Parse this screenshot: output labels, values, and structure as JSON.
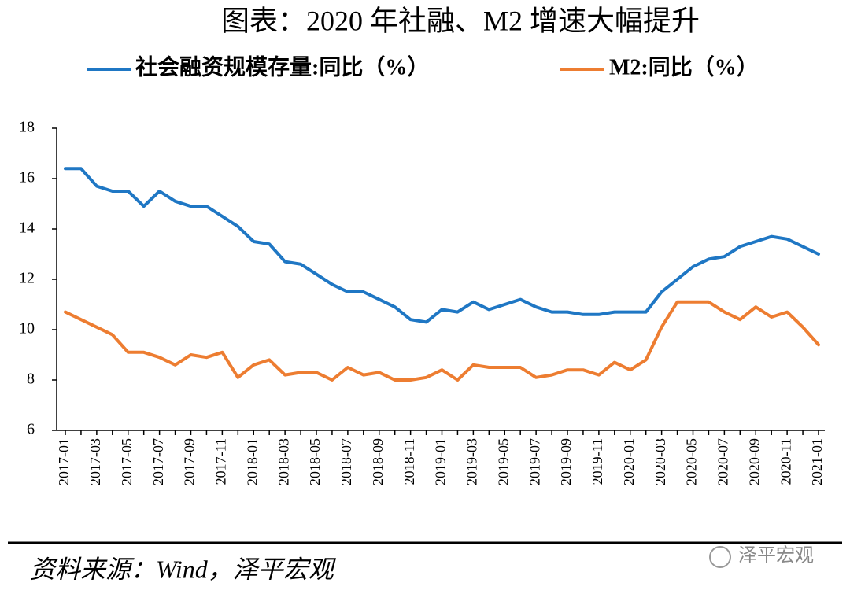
{
  "chart_data": {
    "type": "line",
    "title": "图表：2020 年社融、M2 增速大幅提升",
    "source": "资料来源：Wind，泽平宏观",
    "watermark": "泽平宏观",
    "categories": [
      "2017-01",
      null,
      "2017-03",
      null,
      "2017-05",
      null,
      "2017-07",
      null,
      "2017-09",
      null,
      "2017-11",
      null,
      "2018-01",
      null,
      "2018-03",
      null,
      "2018-05",
      null,
      "2018-07",
      null,
      "2018-09",
      null,
      "2018-11",
      null,
      "2019-01",
      null,
      "2019-03",
      null,
      "2019-05",
      null,
      "2019-07",
      null,
      "2019-09",
      null,
      "2019-11",
      null,
      "2020-01",
      null,
      "2020-03",
      null,
      "2020-05",
      null,
      "2020-07",
      null,
      "2020-09",
      null,
      "2020-11",
      null,
      "2021-01"
    ],
    "series": [
      {
        "name": "社会融资规模存量:同比（%）",
        "color": "#1f77c4",
        "values": [
          16.4,
          16.4,
          15.7,
          15.5,
          15.5,
          14.9,
          15.5,
          15.1,
          14.9,
          14.9,
          14.5,
          14.1,
          13.5,
          13.4,
          12.7,
          12.6,
          12.2,
          11.8,
          11.5,
          11.5,
          11.2,
          10.9,
          10.4,
          10.3,
          10.8,
          10.7,
          11.1,
          10.8,
          11.0,
          11.2,
          10.9,
          10.7,
          10.7,
          10.6,
          10.6,
          10.7,
          10.7,
          10.7,
          11.5,
          12.0,
          12.5,
          12.8,
          12.9,
          13.3,
          13.5,
          13.7,
          13.6,
          13.3,
          13.0
        ]
      },
      {
        "name": "M2:同比（%）",
        "color": "#ed7d31",
        "values": [
          10.7,
          10.4,
          10.1,
          9.8,
          9.1,
          9.1,
          8.9,
          8.6,
          9.0,
          8.9,
          9.1,
          8.1,
          8.6,
          8.8,
          8.2,
          8.3,
          8.3,
          8.0,
          8.5,
          8.2,
          8.3,
          8.0,
          8.0,
          8.1,
          8.4,
          8.0,
          8.6,
          8.5,
          8.5,
          8.5,
          8.1,
          8.2,
          8.4,
          8.4,
          8.2,
          8.7,
          8.4,
          8.8,
          10.1,
          11.1,
          11.1,
          11.1,
          10.7,
          10.4,
          10.9,
          10.5,
          10.7,
          10.1,
          9.4
        ]
      }
    ],
    "ylim": [
      6,
      18
    ],
    "yticks": [
      6,
      8,
      10,
      12,
      14,
      16,
      18
    ]
  }
}
